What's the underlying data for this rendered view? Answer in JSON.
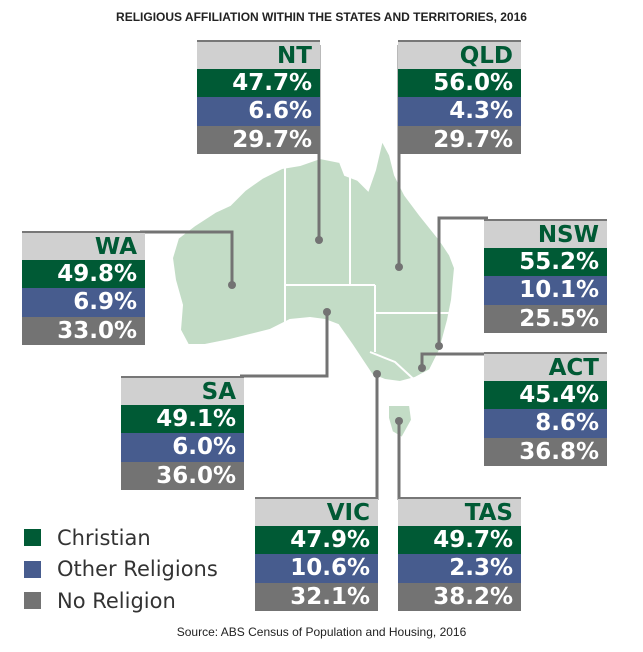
{
  "title": "RELIGIOUS AFFILIATION WITHIN THE STATES AND TERRITORIES, 2016",
  "source": "Source: ABS Census of Population and Housing, 2016",
  "colors": {
    "christian": "#005a35",
    "other": "#475c8e",
    "none": "#737373",
    "header": "#d0d0d0",
    "map": "#c3dcc6"
  },
  "legend": [
    {
      "label": "Christian",
      "color": "#005a35"
    },
    {
      "label": "Other Religions",
      "color": "#475c8e"
    },
    {
      "label": "No Religion",
      "color": "#737373"
    }
  ],
  "states": [
    {
      "name": "NT",
      "christian": "47.7%",
      "other": "6.6%",
      "none": "29.7%"
    },
    {
      "name": "QLD",
      "christian": "56.0%",
      "other": "4.3%",
      "none": "29.7%"
    },
    {
      "name": "WA",
      "christian": "49.8%",
      "other": "6.9%",
      "none": "33.0%"
    },
    {
      "name": "NSW",
      "christian": "55.2%",
      "other": "10.1%",
      "none": "25.5%"
    },
    {
      "name": "SA",
      "christian": "49.1%",
      "other": "6.0%",
      "none": "36.0%"
    },
    {
      "name": "ACT",
      "christian": "45.4%",
      "other": "8.6%",
      "none": "36.8%"
    },
    {
      "name": "VIC",
      "christian": "47.9%",
      "other": "10.6%",
      "none": "32.1%"
    },
    {
      "name": "TAS",
      "christian": "49.7%",
      "other": "2.3%",
      "none": "38.2%"
    }
  ]
}
